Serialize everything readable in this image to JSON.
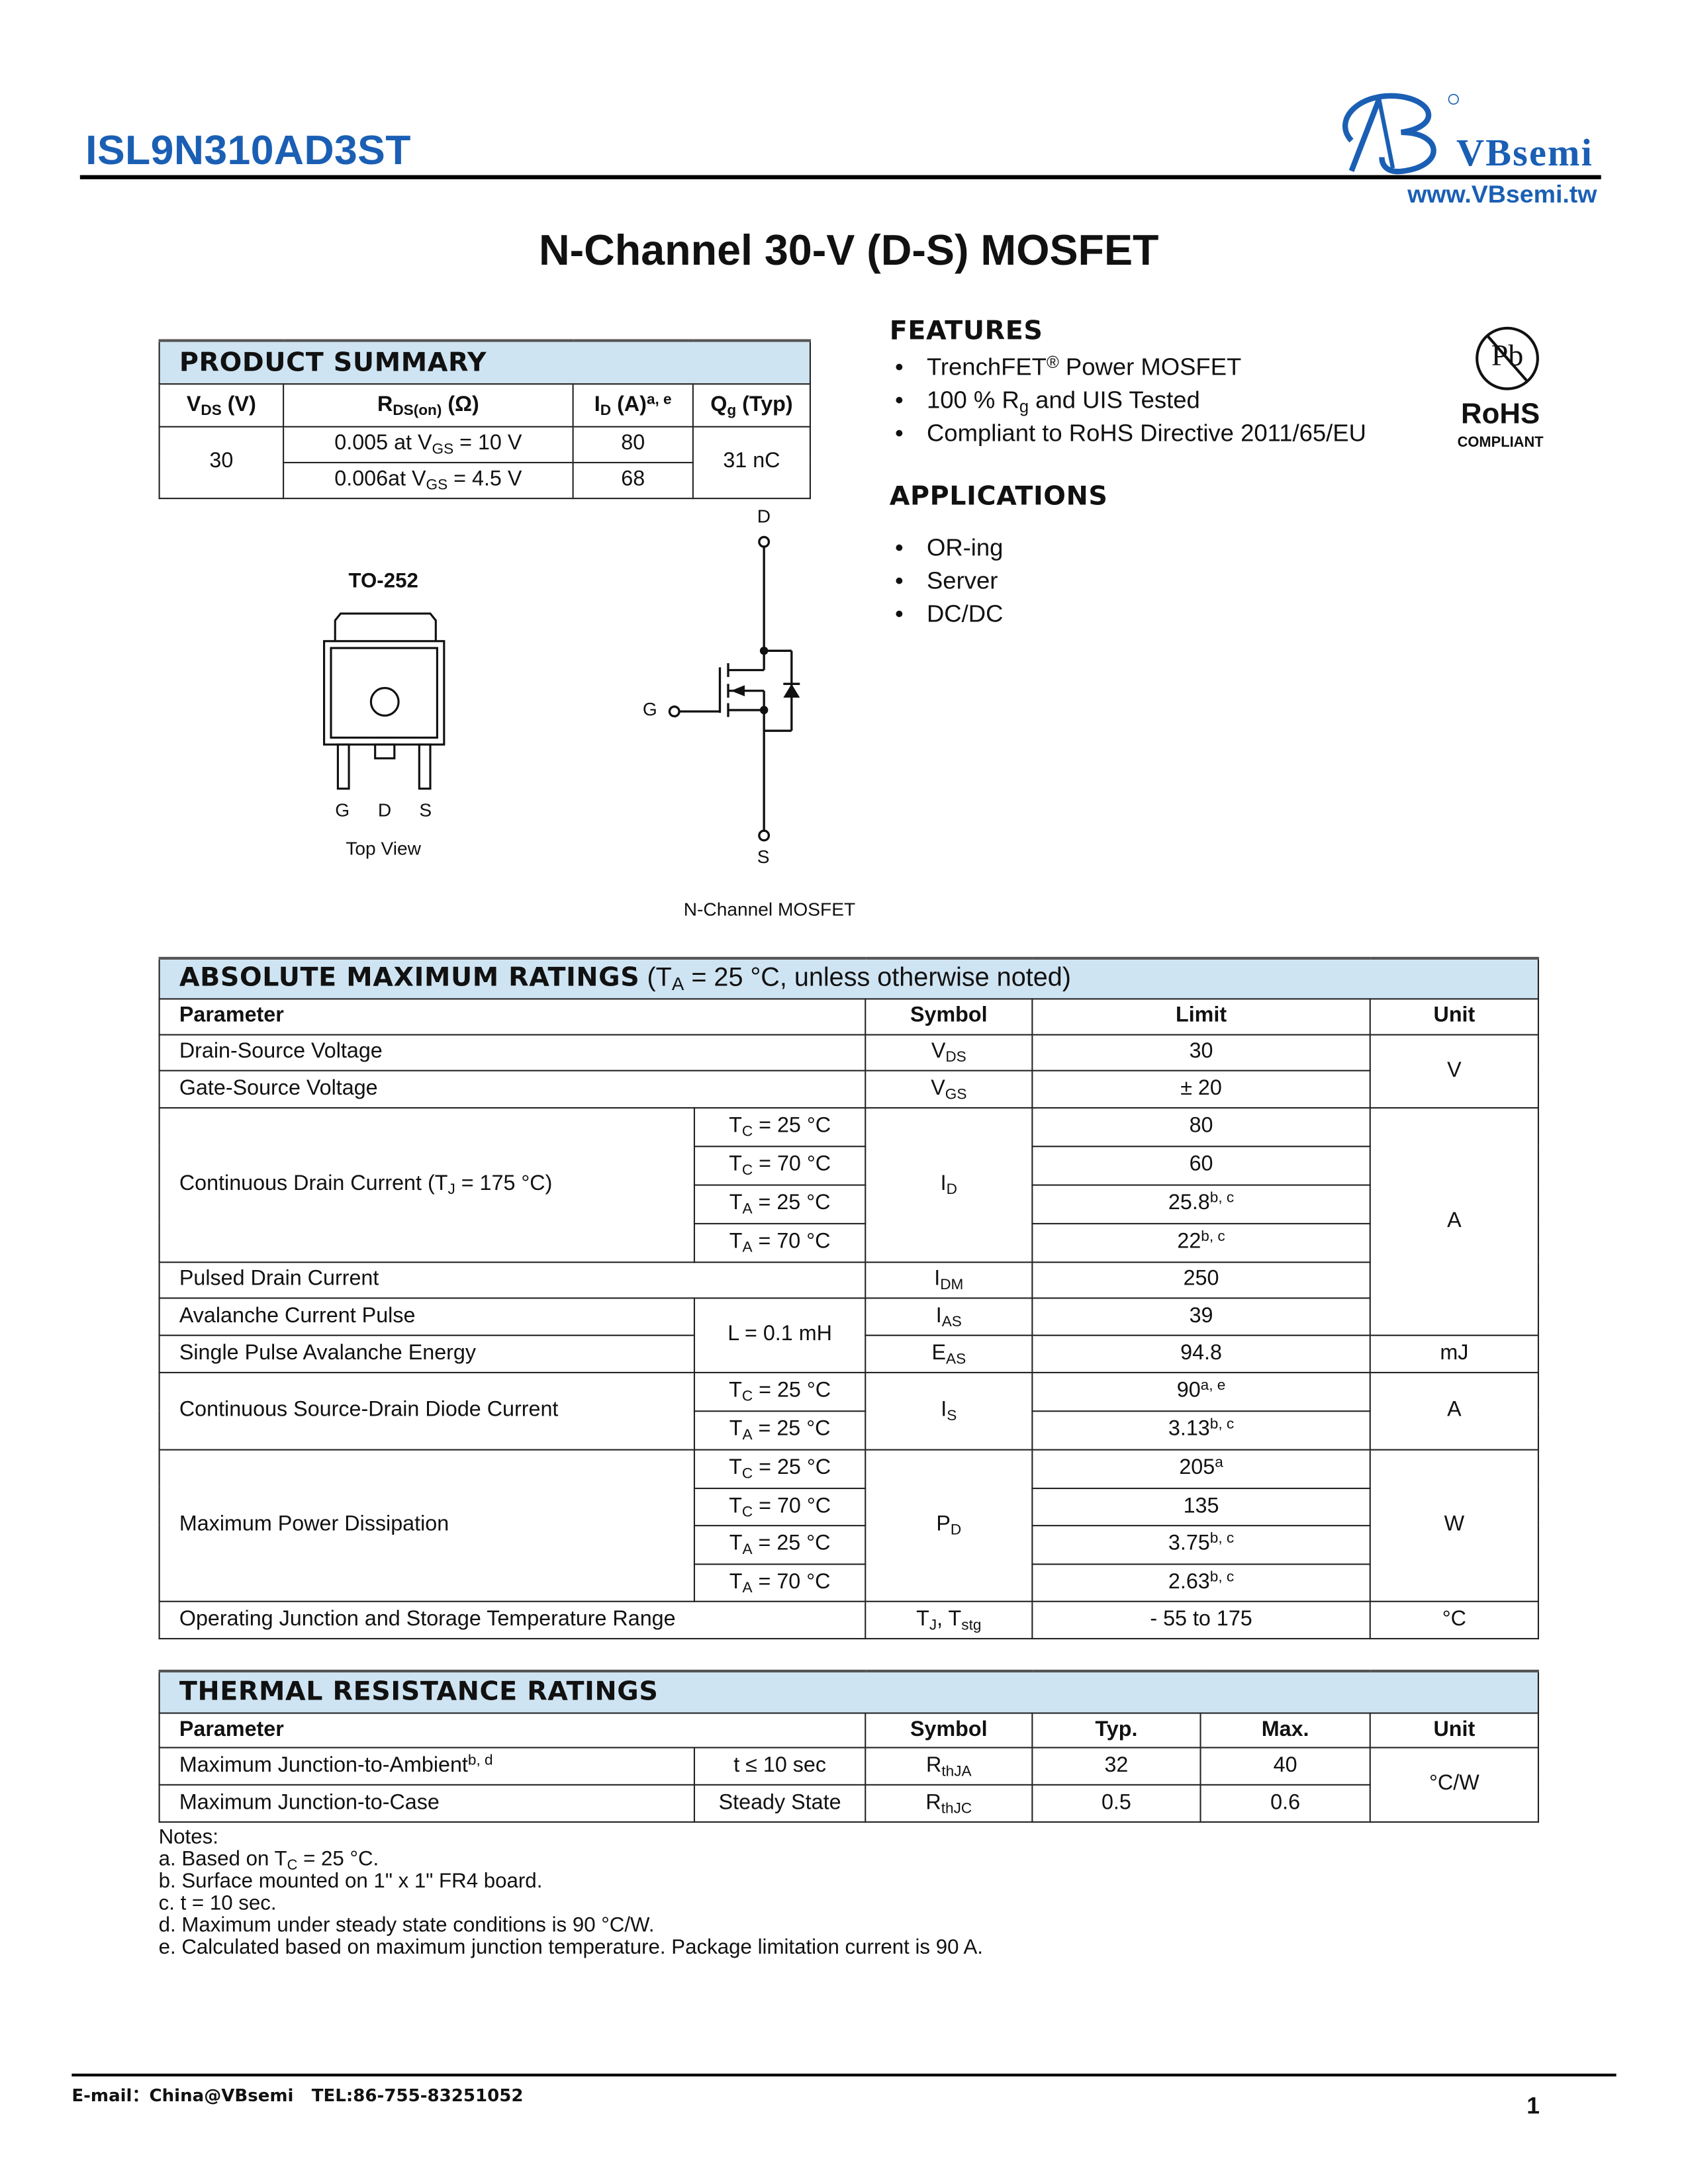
{
  "header": {
    "part_number": "ISL9N310AD3ST",
    "brand": "VBsemi",
    "website": "www.VBsemi.tw",
    "title": "N-Channel 30-V (D-S) MOSFET",
    "brand_color": "#1a5fb4"
  },
  "product_summary": {
    "title": "PRODUCT SUMMARY",
    "headers": [
      [
        [
          "V",
          ""
        ],
        [
          "DS",
          "sub"
        ],
        [
          " (V)",
          ""
        ]
      ],
      [
        [
          "R",
          ""
        ],
        [
          "DS(on)",
          "sub"
        ],
        [
          " (Ω)",
          ""
        ]
      ],
      [
        [
          "I",
          ""
        ],
        [
          "D",
          "sub"
        ],
        [
          " (A)",
          ""
        ],
        [
          "a, e",
          "sup"
        ]
      ],
      [
        [
          "Q",
          ""
        ],
        [
          "g",
          "sub"
        ],
        [
          " (Typ)",
          ""
        ]
      ]
    ],
    "vds": "30",
    "rows": [
      {
        "rds": [
          [
            "0.005 at V",
            ""
          ],
          [
            "GS",
            "sub"
          ],
          [
            " = 10 V",
            ""
          ]
        ],
        "id": "80"
      },
      {
        "rds": [
          [
            "0.006at V",
            ""
          ],
          [
            "GS",
            "sub"
          ],
          [
            " = 4.5 V",
            ""
          ]
        ],
        "id": "68"
      }
    ],
    "qg": "31 nC",
    "header_color": "#cfe4f2"
  },
  "features": {
    "title": "FEATURES",
    "items": [
      [
        [
          "TrenchFET",
          ""
        ],
        [
          "®",
          "sup"
        ],
        [
          " Power MOSFET",
          ""
        ]
      ],
      [
        [
          "100 % R",
          ""
        ],
        [
          "g",
          "sub"
        ],
        [
          " and UIS Tested",
          ""
        ]
      ],
      [
        [
          "Compliant to RoHS Directive 2011/65/EU",
          ""
        ]
      ]
    ]
  },
  "rohs": {
    "pb": "Pb",
    "label": "RoHS",
    "sublabel": "COMPLIANT"
  },
  "applications": {
    "title": "APPLICATIONS",
    "items": [
      "OR-ing",
      "Server",
      "DC/DC"
    ]
  },
  "package": {
    "name": "TO-252",
    "pins": [
      "G",
      "D",
      "S"
    ],
    "view": "Top View"
  },
  "schematic": {
    "drain": "D",
    "gate": "G",
    "source": "S",
    "caption": "N-Channel MOSFET"
  },
  "abs_max": {
    "title": "ABSOLUTE MAXIMUM RATINGS",
    "condition": [
      [
        " (T",
        ""
      ],
      [
        "A",
        "sub"
      ],
      [
        " = 25 °C, unless otherwise noted)",
        ""
      ]
    ],
    "headers": [
      "Parameter",
      "Symbol",
      "Limit",
      "Unit"
    ],
    "drain_source": {
      "param": "Drain-Source Voltage",
      "symbol": [
        [
          "V",
          ""
        ],
        [
          "DS",
          "sub"
        ]
      ],
      "limit": "30"
    },
    "gate_source": {
      "param": "Gate-Source Voltage",
      "symbol": [
        [
          "V",
          ""
        ],
        [
          "GS",
          "sub"
        ]
      ],
      "limit": "± 20"
    },
    "volt_unit": "V",
    "cont_drain": {
      "param": [
        [
          "Continuous Drain Current (T",
          ""
        ],
        [
          "J",
          "sub"
        ],
        [
          " = 175 °C)",
          ""
        ]
      ],
      "symbol": [
        [
          "I",
          ""
        ],
        [
          "D",
          "sub"
        ]
      ],
      "rows": [
        {
          "cond": [
            [
              "T",
              ""
            ],
            [
              "C",
              "sub"
            ],
            [
              " = 25 °C",
              ""
            ]
          ],
          "limit": [
            [
              "80",
              ""
            ]
          ]
        },
        {
          "cond": [
            [
              "T",
              ""
            ],
            [
              "C",
              "sub"
            ],
            [
              " = 70 °C",
              ""
            ]
          ],
          "limit": [
            [
              "60",
              ""
            ]
          ]
        },
        {
          "cond": [
            [
              "T",
              ""
            ],
            [
              "A",
              "sub"
            ],
            [
              " = 25 °C",
              ""
            ]
          ],
          "limit": [
            [
              "25.8",
              ""
            ],
            [
              "b, c",
              "sup"
            ]
          ]
        },
        {
          "cond": [
            [
              "T",
              ""
            ],
            [
              "A",
              "sub"
            ],
            [
              " = 70 °C",
              ""
            ]
          ],
          "limit": [
            [
              "22",
              ""
            ],
            [
              "b, c",
              "sup"
            ]
          ]
        }
      ]
    },
    "amp_unit": "A",
    "pulsed": {
      "param": "Pulsed Drain Current",
      "symbol": [
        [
          "I",
          ""
        ],
        [
          "DM",
          "sub"
        ]
      ],
      "limit": "250"
    },
    "avalanche_current": {
      "param": "Avalanche Current Pulse",
      "symbol": [
        [
          "I",
          ""
        ],
        [
          "AS",
          "sub"
        ]
      ],
      "limit": "39"
    },
    "avalanche_cond": "L = 0.1 mH",
    "avalanche_energy": {
      "param": "Single Pulse Avalanche Energy",
      "symbol": [
        [
          "E",
          ""
        ],
        [
          "AS",
          "sub"
        ]
      ],
      "limit": "94.8",
      "unit": "mJ"
    },
    "diode": {
      "param": "Continuous Source-Drain Diode Current",
      "symbol": [
        [
          "I",
          ""
        ],
        [
          "S",
          "sub"
        ]
      ],
      "unit": "A",
      "rows": [
        {
          "cond": [
            [
              "T",
              ""
            ],
            [
              "C",
              "sub"
            ],
            [
              " = 25 °C",
              ""
            ]
          ],
          "limit": [
            [
              "90",
              ""
            ],
            [
              "a, e",
              "sup"
            ]
          ]
        },
        {
          "cond": [
            [
              "T",
              ""
            ],
            [
              "A",
              "sub"
            ],
            [
              " = 25 °C",
              ""
            ]
          ],
          "limit": [
            [
              "3.13",
              ""
            ],
            [
              "b, c",
              "sup"
            ]
          ]
        }
      ]
    },
    "power": {
      "param": "Maximum Power Dissipation",
      "symbol": [
        [
          "P",
          ""
        ],
        [
          "D",
          "sub"
        ]
      ],
      "unit": "W",
      "rows": [
        {
          "cond": [
            [
              "T",
              ""
            ],
            [
              "C",
              "sub"
            ],
            [
              " = 25 °C",
              ""
            ]
          ],
          "limit": [
            [
              "205",
              ""
            ],
            [
              "a",
              "sup"
            ]
          ]
        },
        {
          "cond": [
            [
              "T",
              ""
            ],
            [
              "C",
              "sub"
            ],
            [
              " = 70 °C",
              ""
            ]
          ],
          "limit": [
            [
              "135",
              ""
            ]
          ]
        },
        {
          "cond": [
            [
              "T",
              ""
            ],
            [
              "A",
              "sub"
            ],
            [
              " = 25 °C",
              ""
            ]
          ],
          "limit": [
            [
              "3.75",
              ""
            ],
            [
              "b, c",
              "sup"
            ]
          ]
        },
        {
          "cond": [
            [
              "T",
              ""
            ],
            [
              "A",
              "sub"
            ],
            [
              " = 70 °C",
              ""
            ]
          ],
          "limit": [
            [
              "2.63",
              ""
            ],
            [
              "b, c",
              "sup"
            ]
          ]
        }
      ]
    },
    "temp": {
      "param": "Operating Junction and Storage Temperature Range",
      "symbol": [
        [
          "T",
          ""
        ],
        [
          "J",
          "sub"
        ],
        [
          ", T",
          ""
        ],
        [
          "stg",
          "sub"
        ]
      ],
      "limit": "- 55 to 175",
      "unit": "°C"
    }
  },
  "thermal": {
    "title": "THERMAL RESISTANCE RATINGS",
    "headers": [
      "Parameter",
      "Symbol",
      "Typ.",
      "Max.",
      "Unit"
    ],
    "rows": [
      {
        "param": [
          [
            "Maximum Junction-to-Ambient",
            ""
          ],
          [
            "b, d",
            "sup"
          ]
        ],
        "cond": "t ≤ 10 sec",
        "symbol": [
          [
            "R",
            ""
          ],
          [
            "thJA",
            "sub"
          ]
        ],
        "typ": "32",
        "max": "40"
      },
      {
        "param": [
          [
            "Maximum Junction-to-Case",
            ""
          ]
        ],
        "cond": "Steady State",
        "symbol": [
          [
            "R",
            ""
          ],
          [
            "thJC",
            "sub"
          ]
        ],
        "typ": "0.5",
        "max": "0.6"
      }
    ],
    "unit": "°C/W"
  },
  "notes": {
    "title": "Notes:",
    "items": [
      [
        [
          "a. Based on T",
          ""
        ],
        [
          "C",
          "sub"
        ],
        [
          " = 25 °C.",
          ""
        ]
      ],
      [
        [
          "b. Surface mounted on 1\" x 1\" FR4 board.",
          ""
        ]
      ],
      [
        [
          "c. t = 10 sec.",
          ""
        ]
      ],
      [
        [
          "d. Maximum under steady state conditions is 90 °C/W.",
          ""
        ]
      ],
      [
        [
          "e. Calculated based on maximum junction temperature. Package limitation current is 90 A.",
          ""
        ]
      ]
    ]
  },
  "footer": {
    "email": "E-mail：China@VBsemi",
    "tel": "TEL:86-755-83251052",
    "page": "1"
  }
}
